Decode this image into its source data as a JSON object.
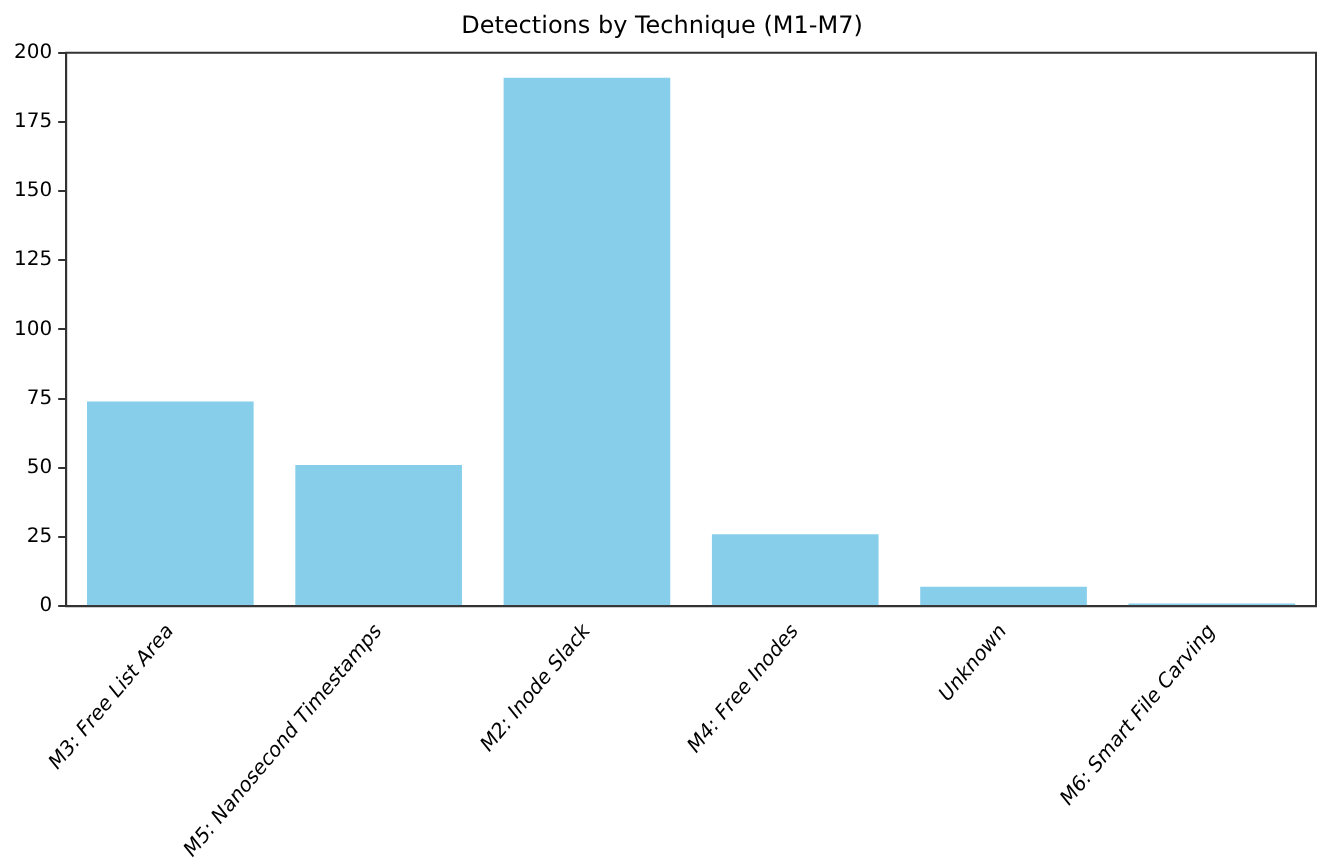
{
  "chart_data": {
    "type": "bar",
    "title": "Detections by Technique (M1-M7)",
    "categories": [
      "M3: Free List Area",
      "M5: Nanosecond Timestamps",
      "M2: Inode Slack",
      "M4: Free Inodes",
      "Unknown",
      "M6: Smart File Carving"
    ],
    "values": [
      74,
      51,
      191,
      26,
      7,
      1
    ],
    "color": "#87ceeb",
    "ylim": [
      0,
      200
    ],
    "yticks": [
      0,
      25,
      50,
      75,
      100,
      125,
      150,
      175,
      200
    ],
    "grid": false,
    "legend": false
  }
}
